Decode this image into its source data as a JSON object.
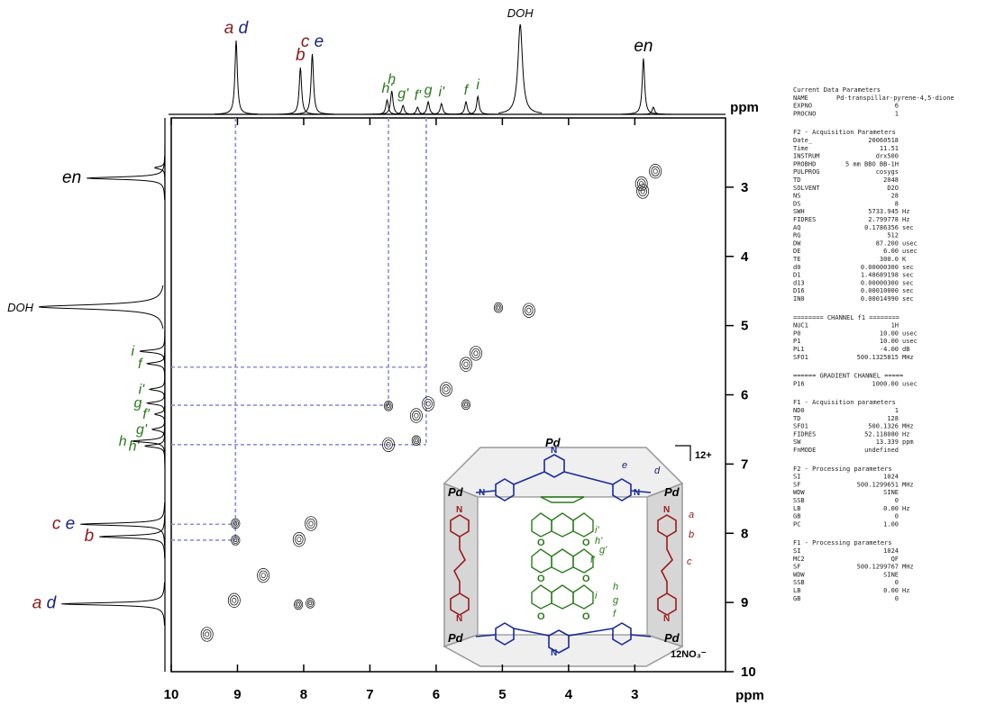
{
  "chart_data": {
    "type": "cosy",
    "xlabel": "ppm",
    "ylabel": "ppm",
    "xlim": [
      10,
      1.63
    ],
    "xticks": [
      10,
      9,
      8,
      7,
      6,
      5,
      4,
      3
    ],
    "ylim": [
      2,
      10
    ],
    "yticks": [
      3,
      4,
      5,
      6,
      7,
      8,
      9,
      10
    ],
    "peaks": [
      {
        "ppm": 9.02,
        "height": 82,
        "labels": [
          {
            "text": "a",
            "color": "#8b1a1a"
          },
          {
            "text": "d",
            "color": "#1a237e"
          }
        ]
      },
      {
        "ppm": 8.05,
        "height": 52,
        "labels": [
          {
            "text": "b",
            "color": "#8b1a1a"
          }
        ]
      },
      {
        "ppm": 7.87,
        "height": 67,
        "labels": [
          {
            "text": "c",
            "color": "#8b1a1a"
          },
          {
            "text": "e",
            "color": "#1a237e"
          }
        ]
      },
      {
        "ppm": 6.74,
        "height": 16,
        "labels": [
          {
            "text": "h'",
            "color": "#2a7a1a"
          }
        ]
      },
      {
        "ppm": 6.67,
        "height": 26,
        "labels": [
          {
            "text": "h",
            "color": "#2a7a1a"
          }
        ]
      },
      {
        "ppm": 6.5,
        "height": 10,
        "labels": [
          {
            "text": "g'",
            "color": "#2a7a1a"
          }
        ]
      },
      {
        "ppm": 6.28,
        "height": 8,
        "labels": [
          {
            "text": "f'",
            "color": "#2a7a1a"
          }
        ]
      },
      {
        "ppm": 6.12,
        "height": 14,
        "labels": [
          {
            "text": "g",
            "color": "#2a7a1a"
          }
        ]
      },
      {
        "ppm": 5.92,
        "height": 12,
        "labels": [
          {
            "text": "i'",
            "color": "#2a7a1a"
          }
        ]
      },
      {
        "ppm": 5.55,
        "height": 14,
        "labels": [
          {
            "text": "f",
            "color": "#2a7a1a"
          }
        ]
      },
      {
        "ppm": 5.37,
        "height": 20,
        "labels": [
          {
            "text": "i",
            "color": "#2a7a1a"
          }
        ]
      },
      {
        "ppm": 4.73,
        "height": 100,
        "labels": [
          {
            "text": "DOH",
            "color": "#000000"
          }
        ]
      },
      {
        "ppm": 2.87,
        "height": 62,
        "labels": [
          {
            "text": "en",
            "color": "#000000"
          }
        ]
      },
      {
        "ppm": 2.72,
        "height": 8,
        "labels": []
      }
    ],
    "cross_peaks": [
      [
        2.69,
        2.77
      ],
      [
        2.9,
        2.95
      ],
      [
        2.88,
        3.06
      ],
      [
        4.6,
        4.78
      ],
      [
        5.06,
        4.74
      ],
      [
        5.4,
        5.4
      ],
      [
        5.55,
        5.56
      ],
      [
        5.85,
        5.92
      ],
      [
        5.55,
        6.14
      ],
      [
        6.12,
        6.13
      ],
      [
        6.3,
        6.3
      ],
      [
        6.72,
        6.16
      ],
      [
        6.3,
        6.66
      ],
      [
        6.72,
        6.72
      ],
      [
        7.89,
        7.86
      ],
      [
        8.07,
        8.09
      ],
      [
        9.03,
        7.86
      ],
      [
        9.03,
        8.1
      ],
      [
        9.05,
        8.97
      ],
      [
        8.08,
        9.03
      ],
      [
        7.9,
        9.01
      ],
      [
        8.61,
        8.61
      ],
      [
        9.46,
        9.46
      ]
    ],
    "guides": [
      [
        6.15,
        5.6
      ],
      [
        6.72,
        6.15
      ],
      [
        6.15,
        6.72
      ],
      [
        9.03,
        7.87
      ],
      [
        9.03,
        8.1
      ]
    ]
  },
  "structure": {
    "metal": "Pd",
    "nitrogen": "N",
    "oxygen": "O",
    "host_protons": [
      {
        "text": "a",
        "color": "#8b1a1a"
      },
      {
        "text": "b",
        "color": "#8b1a1a"
      },
      {
        "text": "c",
        "color": "#8b1a1a"
      },
      {
        "text": "d",
        "color": "#1a237e"
      },
      {
        "text": "e",
        "color": "#1a237e"
      }
    ],
    "guest_protons": [
      "i'",
      "h'",
      "g'",
      "f'",
      "i",
      "h",
      "g",
      "f"
    ],
    "charge": "12+",
    "counterion": "12NO₃⁻"
  },
  "parameters": [
    {
      "title": "Current Data Parameters",
      "rows": [
        [
          "NAME",
          "Pd-transpillar-pyrene-4,5-dione"
        ],
        [
          "EXPNO",
          "6"
        ],
        [
          "PROCNO",
          "1"
        ]
      ]
    },
    {
      "title": "F2 - Acquisition Parameters",
      "rows": [
        [
          "Date_",
          "20060518"
        ],
        [
          "Time",
          "11.51"
        ],
        [
          "INSTRUM",
          "drx500"
        ],
        [
          "PROBHD",
          "5 mm BBO BB-1H"
        ],
        [
          "PULPROG",
          "cosygs"
        ],
        [
          "TD",
          "2048"
        ],
        [
          "SOLVENT",
          "D2O"
        ],
        [
          "NS",
          "28"
        ],
        [
          "DS",
          "8"
        ],
        [
          "SWH",
          "5733.945",
          "Hz"
        ],
        [
          "FIDRES",
          "2.799778",
          "Hz"
        ],
        [
          "AQ",
          "0.1786356",
          "sec"
        ],
        [
          "RG",
          "512"
        ],
        [
          "DW",
          "87.200",
          "usec"
        ],
        [
          "DE",
          "6.00",
          "usec"
        ],
        [
          "TE",
          "300.0",
          "K"
        ],
        [
          "d0",
          "0.00000300",
          "sec"
        ],
        [
          "D1",
          "1.48689198",
          "sec"
        ],
        [
          "d13",
          "0.00000300",
          "sec"
        ],
        [
          "D16",
          "0.00010000",
          "sec"
        ],
        [
          "IN0",
          "0.00014990",
          "sec"
        ]
      ]
    },
    {
      "title": "======== CHANNEL f1 ========",
      "rows": [
        [
          "NUC1",
          "1H"
        ],
        [
          "P0",
          "10.00",
          "usec"
        ],
        [
          "P1",
          "10.00",
          "usec"
        ],
        [
          "PL1",
          "-4.00",
          "dB"
        ],
        [
          "SFO1",
          "500.1325815",
          "MHz"
        ]
      ]
    },
    {
      "title": "====== GRADIENT CHANNEL =====",
      "rows": [
        [
          "P16",
          "1000.00",
          "usec"
        ]
      ]
    },
    {
      "title": "F1 - Acquisition parameters",
      "rows": [
        [
          "ND0",
          "1"
        ],
        [
          "TD",
          "128"
        ],
        [
          "SFO1",
          "500.1326",
          "MHz"
        ],
        [
          "FIDRES",
          "52.118080",
          "Hz"
        ],
        [
          "SW",
          "13.339",
          "ppm"
        ],
        [
          "FnMODE",
          "undefined"
        ]
      ]
    },
    {
      "title": "F2 - Processing parameters",
      "rows": [
        [
          "SI",
          "1024"
        ],
        [
          "SF",
          "500.1299651",
          "MHz"
        ],
        [
          "WDW",
          "SINE"
        ],
        [
          "SSB",
          "0"
        ],
        [
          "LB",
          "0.00",
          "Hz"
        ],
        [
          "GB",
          "0"
        ],
        [
          "PC",
          "1.00"
        ]
      ]
    },
    {
      "title": "F1 - Processing parameters",
      "rows": [
        [
          "SI",
          "1024"
        ],
        [
          "MC2",
          "QF"
        ],
        [
          "SF",
          "500.1299767",
          "MHz"
        ],
        [
          "WDW",
          "SINE"
        ],
        [
          "SSB",
          "0"
        ],
        [
          "LB",
          "0.00",
          "Hz"
        ],
        [
          "GB",
          "0"
        ]
      ]
    }
  ]
}
